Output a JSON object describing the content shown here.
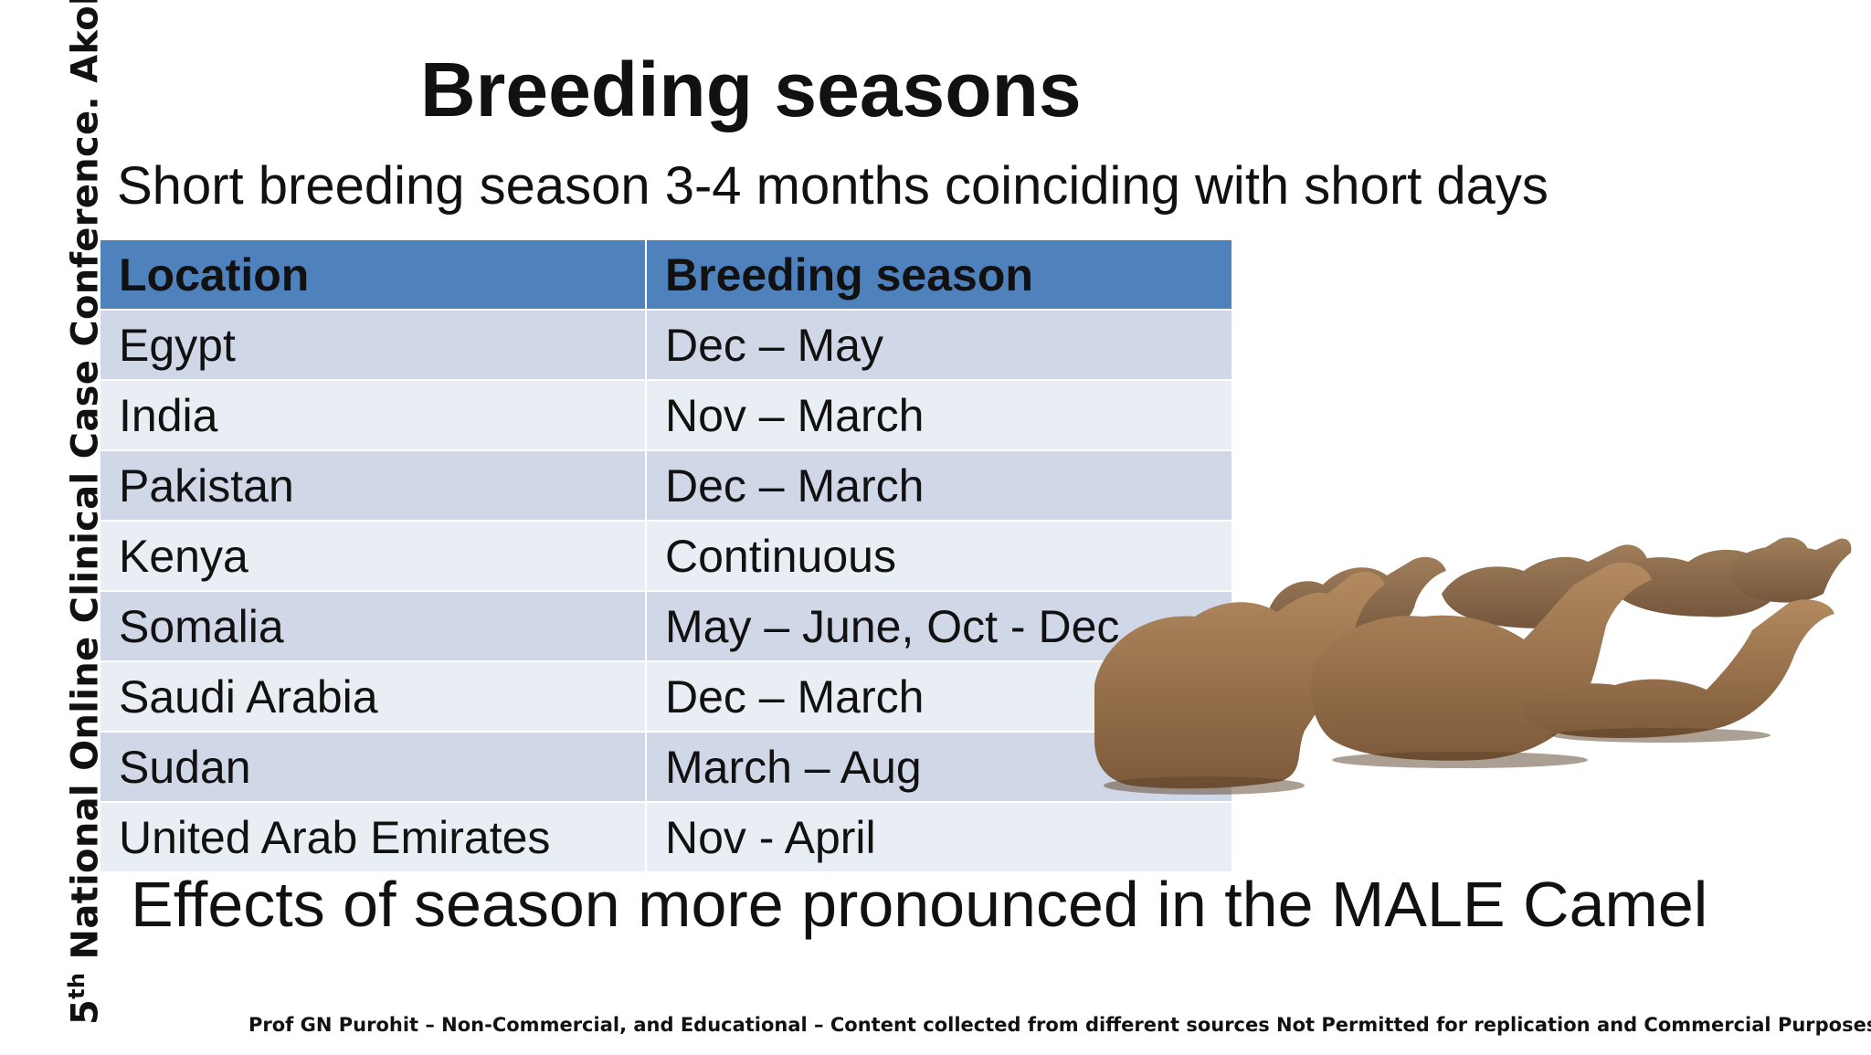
{
  "side_label": {
    "prefix": "5",
    "sup": "th",
    "text": " National Online Clinical Case Conference. Akola"
  },
  "title": "Breeding seasons",
  "subtitle": "Short breeding season 3-4 months coinciding with short days",
  "table": {
    "headers": [
      "Location",
      "Breeding season"
    ],
    "rows": [
      [
        "Egypt",
        "Dec – May"
      ],
      [
        "India",
        "Nov – March"
      ],
      [
        "Pakistan",
        "Dec – March"
      ],
      [
        "Kenya",
        "Continuous"
      ],
      [
        "Somalia",
        "May – June, Oct - Dec"
      ],
      [
        "Saudi Arabia",
        "Dec – March"
      ],
      [
        "Sudan",
        "March – Aug"
      ],
      [
        "United Arab Emirates",
        "Nov - April"
      ]
    ]
  },
  "effects": "Effects of season more pronounced in the MALE Camel",
  "footer": "Prof GN Purohit – Non-Commercial, and Educational – Content collected from different sources  Not Permitted for  replication and Commercial Purposes",
  "colors": {
    "header": "#4f81bd",
    "row_odd": "#d0d8e8",
    "row_even": "#e9edf4",
    "camel": "#9a7550"
  }
}
